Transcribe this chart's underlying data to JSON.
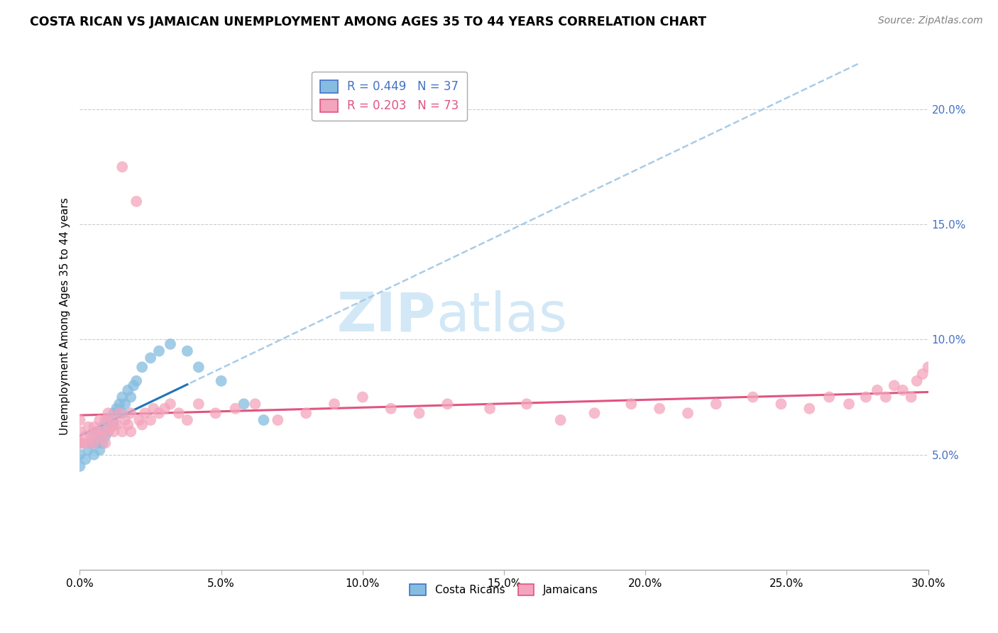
{
  "title": "COSTA RICAN VS JAMAICAN UNEMPLOYMENT AMONG AGES 35 TO 44 YEARS CORRELATION CHART",
  "source": "Source: ZipAtlas.com",
  "ylabel_label": "Unemployment Among Ages 35 to 44 years",
  "xlim": [
    0.0,
    0.3
  ],
  "ylim": [
    0.0,
    0.22
  ],
  "legend_blue_text": "R = 0.449   N = 37",
  "legend_pink_text": "R = 0.203   N = 73",
  "cr_label": "Costa Ricans",
  "jam_label": "Jamaicans",
  "blue_color": "#85bce0",
  "pink_color": "#f4a4bc",
  "trend_blue": "#2176b5",
  "trend_pink": "#e05580",
  "trend_dashed_color": "#a8cce8",
  "watermark_color": "#cce4f5",
  "cr_x": [
    0.0,
    0.0,
    0.0,
    0.002,
    0.003,
    0.004,
    0.005,
    0.005,
    0.006,
    0.007,
    0.007,
    0.008,
    0.008,
    0.009,
    0.01,
    0.01,
    0.011,
    0.012,
    0.012,
    0.013,
    0.014,
    0.015,
    0.015,
    0.016,
    0.017,
    0.018,
    0.019,
    0.02,
    0.022,
    0.025,
    0.028,
    0.032,
    0.038,
    0.042,
    0.05,
    0.058,
    0.065
  ],
  "cr_y": [
    0.045,
    0.05,
    0.055,
    0.048,
    0.052,
    0.055,
    0.05,
    0.058,
    0.055,
    0.052,
    0.06,
    0.055,
    0.062,
    0.058,
    0.06,
    0.065,
    0.062,
    0.068,
    0.063,
    0.07,
    0.072,
    0.068,
    0.075,
    0.072,
    0.078,
    0.075,
    0.08,
    0.082,
    0.088,
    0.092,
    0.095,
    0.098,
    0.095,
    0.088,
    0.082,
    0.072,
    0.065
  ],
  "jam_x": [
    0.0,
    0.0,
    0.0,
    0.001,
    0.002,
    0.003,
    0.003,
    0.004,
    0.005,
    0.005,
    0.006,
    0.007,
    0.007,
    0.008,
    0.009,
    0.009,
    0.01,
    0.01,
    0.011,
    0.012,
    0.012,
    0.013,
    0.014,
    0.015,
    0.015,
    0.016,
    0.017,
    0.018,
    0.018,
    0.02,
    0.021,
    0.022,
    0.023,
    0.025,
    0.026,
    0.028,
    0.03,
    0.032,
    0.035,
    0.038,
    0.042,
    0.048,
    0.055,
    0.062,
    0.07,
    0.08,
    0.09,
    0.1,
    0.11,
    0.12,
    0.13,
    0.145,
    0.158,
    0.17,
    0.182,
    0.195,
    0.205,
    0.215,
    0.225,
    0.238,
    0.248,
    0.258,
    0.265,
    0.272,
    0.278,
    0.282,
    0.285,
    0.288,
    0.291,
    0.294,
    0.296,
    0.298,
    0.3
  ],
  "jam_y": [
    0.055,
    0.06,
    0.065,
    0.055,
    0.058,
    0.055,
    0.062,
    0.058,
    0.055,
    0.062,
    0.06,
    0.058,
    0.065,
    0.06,
    0.055,
    0.065,
    0.06,
    0.068,
    0.062,
    0.06,
    0.065,
    0.063,
    0.068,
    0.06,
    0.175,
    0.065,
    0.063,
    0.06,
    0.068,
    0.16,
    0.065,
    0.063,
    0.068,
    0.065,
    0.07,
    0.068,
    0.07,
    0.072,
    0.068,
    0.065,
    0.072,
    0.068,
    0.07,
    0.072,
    0.065,
    0.068,
    0.072,
    0.075,
    0.07,
    0.068,
    0.072,
    0.07,
    0.072,
    0.065,
    0.068,
    0.072,
    0.07,
    0.068,
    0.072,
    0.075,
    0.072,
    0.07,
    0.075,
    0.072,
    0.075,
    0.078,
    0.075,
    0.08,
    0.078,
    0.075,
    0.082,
    0.085,
    0.088
  ]
}
